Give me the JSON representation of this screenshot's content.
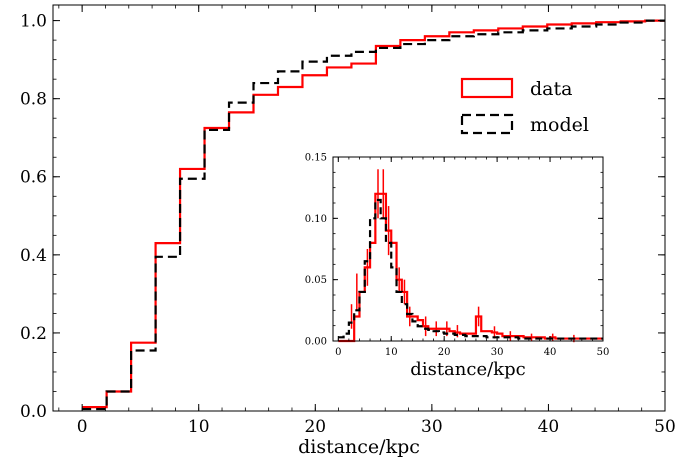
{
  "chart_data": [
    {
      "type": "line",
      "drawstyle": "steps-post",
      "xlabel": "distance/kpc",
      "ylabel": "",
      "xlim": [
        -2.5,
        50
      ],
      "ylim": [
        0,
        1.04
      ],
      "xticks": [
        0,
        10,
        20,
        30,
        40,
        50
      ],
      "yticks": [
        0.0,
        0.2,
        0.4,
        0.6,
        0.8,
        1.0
      ],
      "xtick_labels": [
        "0",
        "10",
        "20",
        "30",
        "40",
        "50"
      ],
      "ytick_labels": [
        "0.0",
        "0.2",
        "0.4",
        "0.6",
        "0.8",
        "1.0"
      ],
      "minor_ticks": true,
      "ticks_direction": "in",
      "ticks_on_all_sides": true,
      "grid": false,
      "legend_position": "right",
      "series": [
        {
          "name": "data",
          "color": "#ff0000",
          "style": "solid",
          "x": [
            0,
            2.1,
            4.2,
            6.3,
            8.4,
            10.5,
            12.6,
            14.7,
            16.8,
            18.9,
            21,
            23.1,
            25.2,
            27.3,
            29.4,
            31.5,
            33.6,
            35.7,
            37.8,
            39.9,
            42,
            44.1,
            46.2,
            48.3,
            50
          ],
          "y": [
            0.01,
            0.05,
            0.175,
            0.43,
            0.62,
            0.725,
            0.765,
            0.81,
            0.83,
            0.86,
            0.88,
            0.89,
            0.935,
            0.95,
            0.96,
            0.97,
            0.975,
            0.98,
            0.985,
            0.99,
            0.993,
            0.996,
            0.998,
            1.0,
            1.0
          ]
        },
        {
          "name": "model",
          "color": "#000000",
          "style": "dashed",
          "x": [
            0,
            2.1,
            4.2,
            6.3,
            8.4,
            10.5,
            12.6,
            14.7,
            16.8,
            18.9,
            21,
            23.1,
            25.2,
            27.3,
            29.4,
            31.5,
            33.6,
            35.7,
            37.8,
            39.9,
            42,
            44.1,
            46.2,
            48.3,
            50
          ],
          "y": [
            0.005,
            0.05,
            0.155,
            0.395,
            0.595,
            0.72,
            0.79,
            0.84,
            0.87,
            0.895,
            0.91,
            0.92,
            0.93,
            0.94,
            0.95,
            0.96,
            0.965,
            0.97,
            0.975,
            0.98,
            0.985,
            0.99,
            0.995,
            1.0,
            1.0
          ]
        }
      ]
    },
    {
      "type": "line",
      "drawstyle": "steps-post",
      "role": "inset",
      "xlabel": "distance/kpc",
      "ylabel": "",
      "xlim": [
        -1,
        50
      ],
      "ylim": [
        0,
        0.15
      ],
      "xticks": [
        0,
        10,
        20,
        30,
        40,
        50
      ],
      "yticks": [
        0.0,
        0.05,
        0.1,
        0.15
      ],
      "xtick_labels": [
        "0",
        "10",
        "20",
        "30",
        "40",
        "50"
      ],
      "ytick_labels": [
        "0.00",
        "0.05",
        "0.10",
        "0.15"
      ],
      "minor_ticks": true,
      "ticks_direction": "in",
      "ticks_on_all_sides": true,
      "grid": false,
      "series": [
        {
          "name": "data",
          "color": "#ff0000",
          "style": "solid",
          "x": [
            0,
            2,
            3,
            4,
            5,
            6,
            7,
            8,
            9,
            10,
            11,
            12,
            13,
            14,
            15,
            16,
            17,
            18,
            19,
            20,
            21,
            22,
            23,
            24,
            25,
            26,
            27,
            28,
            29,
            30,
            31,
            32,
            33,
            34,
            35,
            36,
            37,
            38,
            39,
            40,
            41,
            42,
            43,
            44,
            45,
            46,
            47,
            48,
            49,
            50
          ],
          "y": [
            0,
            0,
            0.02,
            0.04,
            0.06,
            0.08,
            0.12,
            0.12,
            0.09,
            0.08,
            0.05,
            0.04,
            0.02,
            0.02,
            0.017,
            0.012,
            0.01,
            0.01,
            0.01,
            0.01,
            0.008,
            0.007,
            0.006,
            0.006,
            0.006,
            0.02,
            0.008,
            0.008,
            0.007,
            0.006,
            0.004,
            0.004,
            0.004,
            0.004,
            0.003,
            0.003,
            0.003,
            0.003,
            0.002,
            0.003,
            0.002,
            0.002,
            0.002,
            0.002,
            0.002,
            0.002,
            0.002,
            0.002,
            0.002,
            0.002
          ],
          "error_bars": [
            {
              "x": 2.5,
              "y": 0.02,
              "yerr": 0.01
            },
            {
              "x": 3.5,
              "y": 0.04,
              "yerr": 0.015
            },
            {
              "x": 5.5,
              "y": 0.06,
              "yerr": 0.015
            },
            {
              "x": 7.5,
              "y": 0.12,
              "yerr": 0.02
            },
            {
              "x": 8.5,
              "y": 0.12,
              "yerr": 0.02
            },
            {
              "x": 9.5,
              "y": 0.09,
              "yerr": 0.02
            },
            {
              "x": 11.5,
              "y": 0.05,
              "yerr": 0.01
            },
            {
              "x": 12.5,
              "y": 0.04,
              "yerr": 0.01
            },
            {
              "x": 13.5,
              "y": 0.02,
              "yerr": 0.008
            },
            {
              "x": 16.5,
              "y": 0.012,
              "yerr": 0.008
            },
            {
              "x": 18.5,
              "y": 0.01,
              "yerr": 0.006
            },
            {
              "x": 20.5,
              "y": 0.01,
              "yerr": 0.006
            },
            {
              "x": 22.5,
              "y": 0.008,
              "yerr": 0.005
            },
            {
              "x": 26.5,
              "y": 0.02,
              "yerr": 0.008
            },
            {
              "x": 29.5,
              "y": 0.007,
              "yerr": 0.005
            },
            {
              "x": 32.5,
              "y": 0.004,
              "yerr": 0.004
            },
            {
              "x": 36.5,
              "y": 0.003,
              "yerr": 0.003
            },
            {
              "x": 40.5,
              "y": 0.003,
              "yerr": 0.003
            },
            {
              "x": 44.5,
              "y": 0.002,
              "yerr": 0.003
            }
          ]
        },
        {
          "name": "model",
          "color": "#000000",
          "style": "dashed",
          "x": [
            0,
            1,
            2,
            3,
            4,
            5,
            6,
            7,
            8,
            9,
            10,
            11,
            12,
            13,
            14,
            15,
            16,
            17,
            18,
            19,
            20,
            22,
            24,
            26,
            28,
            30,
            32,
            34,
            36,
            38,
            40,
            42,
            44,
            46,
            48,
            50
          ],
          "y": [
            0.003,
            0.006,
            0.015,
            0.025,
            0.04,
            0.065,
            0.1,
            0.115,
            0.1,
            0.08,
            0.06,
            0.04,
            0.03,
            0.022,
            0.016,
            0.012,
            0.01,
            0.009,
            0.008,
            0.007,
            0.006,
            0.005,
            0.004,
            0.004,
            0.003,
            0.003,
            0.003,
            0.002,
            0.002,
            0.002,
            0.002,
            0.002,
            0.002,
            0.002,
            0.002,
            0.002
          ]
        }
      ]
    }
  ]
}
